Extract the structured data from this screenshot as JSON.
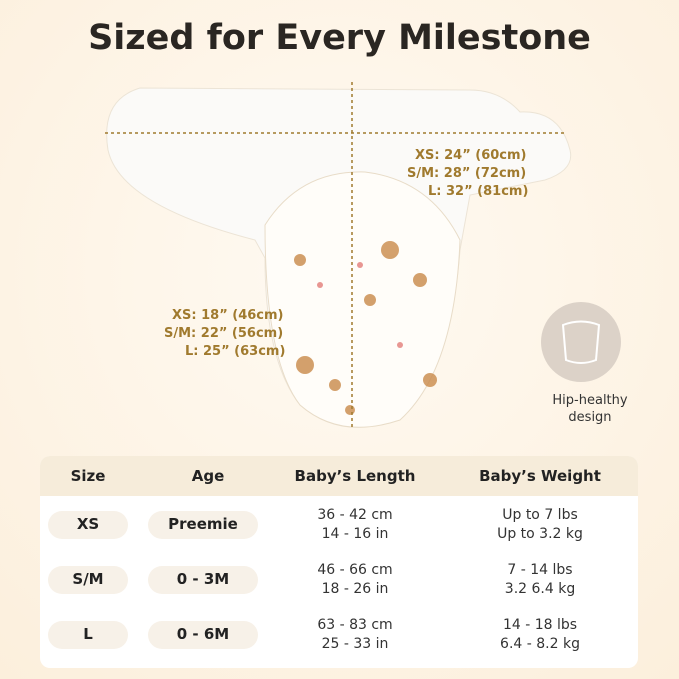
{
  "title": "Sized for Every Milestone",
  "width_labels": [
    "XS: 24” (60cm)",
    "S/M: 28” (72cm)",
    "L: 32” (81cm)"
  ],
  "length_labels": [
    "XS: 18” (46cm)",
    "S/M: 22” (56cm)",
    "L: 25” (63cm)"
  ],
  "badge": "Hip-healthy design",
  "table": {
    "header": [
      "Size",
      "Age",
      "Baby’s Length",
      "Baby’s Weight"
    ],
    "rows": [
      [
        "XS",
        "Preemie",
        [
          "36 - 42 cm",
          "14 - 16 in"
        ],
        [
          "Up to 7 lbs",
          "Up to 3.2 kg"
        ]
      ],
      [
        "S/M",
        "0 - 3M",
        [
          "46 - 66 cm",
          "18 - 26 in"
        ],
        [
          "7 - 14 lbs",
          "3.2 6.4 kg"
        ]
      ],
      [
        "L",
        "0 - 6M",
        [
          "63 - 83 cm",
          "25 - 33 in"
        ],
        [
          "14 - 18 lbs",
          "6.4 - 8.2 kg"
        ]
      ]
    ]
  }
}
